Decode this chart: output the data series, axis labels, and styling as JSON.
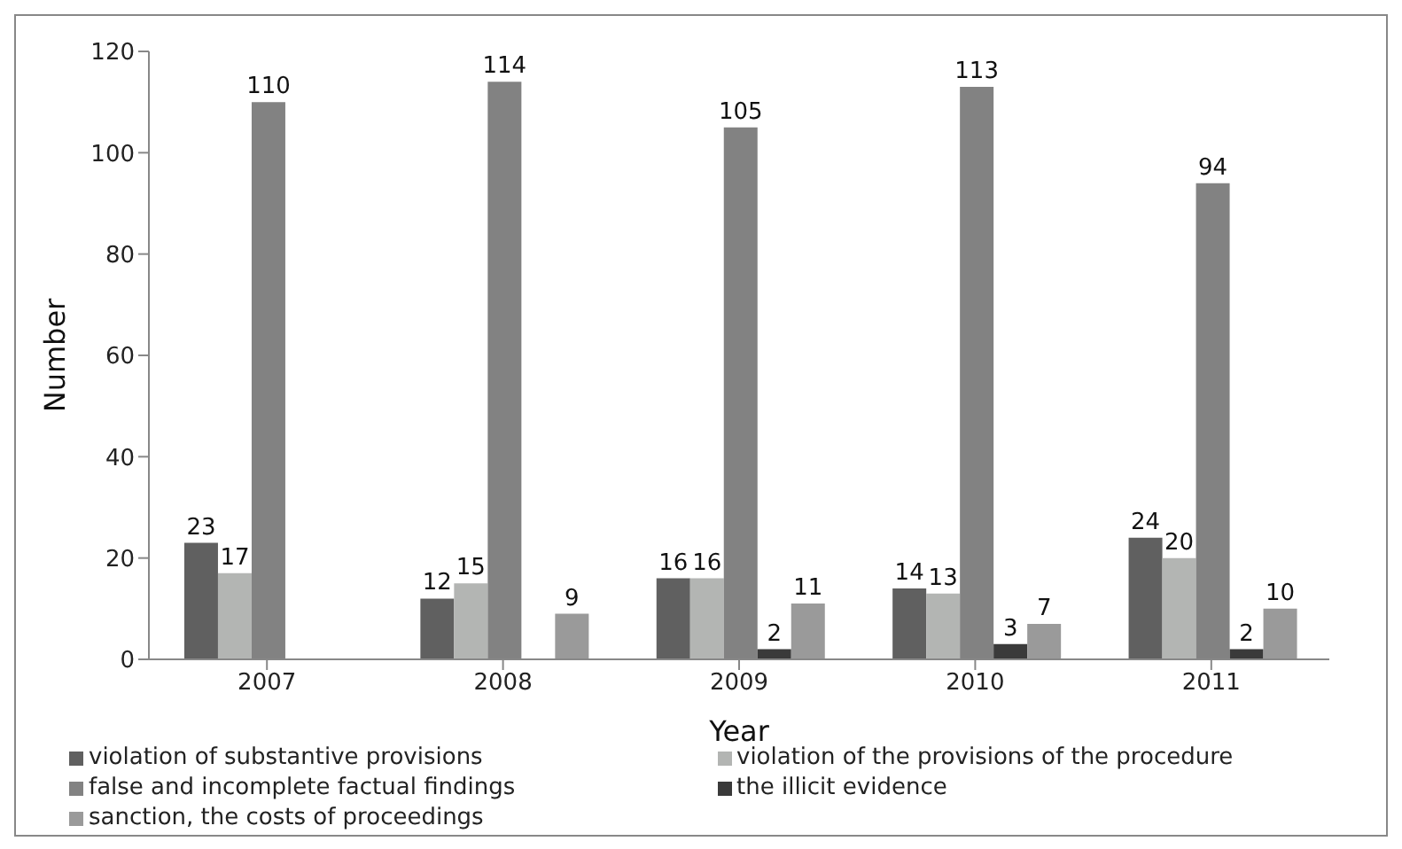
{
  "chart_data": {
    "type": "bar",
    "xlabel": "Year",
    "ylabel": "Number",
    "categories": [
      "2007",
      "2008",
      "2009",
      "2010",
      "2011"
    ],
    "series": [
      {
        "name": "violation of substantive provisions",
        "color": "#606060",
        "values": [
          23,
          12,
          16,
          14,
          24
        ]
      },
      {
        "name": "violation of the provisions of the procedure",
        "color": "#b3b5b3",
        "values": [
          17,
          15,
          16,
          13,
          20
        ]
      },
      {
        "name": "false and incomplete factual findings",
        "color": "#828282",
        "values": [
          110,
          114,
          105,
          113,
          94
        ]
      },
      {
        "name": "the illicit evidence",
        "color": "#3a3a3a",
        "values": [
          null,
          null,
          2,
          3,
          2
        ]
      },
      {
        "name": "sanction, the costs of proceedings",
        "color": "#9a9a9a",
        "values": [
          null,
          9,
          11,
          7,
          10
        ]
      }
    ],
    "ylim": [
      0,
      120
    ],
    "yticks": [
      0,
      20,
      40,
      60,
      80,
      100,
      120
    ],
    "grid": false,
    "legend": "bottom",
    "data_labels": true
  }
}
